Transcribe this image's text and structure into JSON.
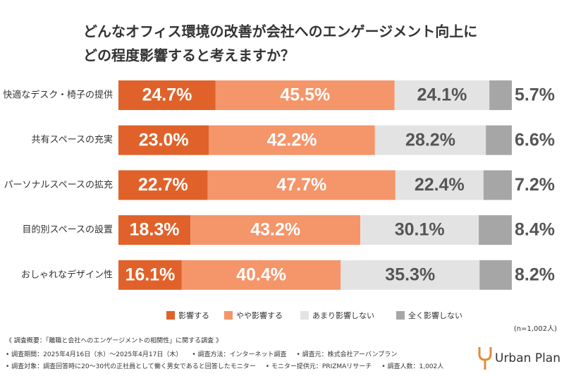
{
  "chart_data": {
    "type": "stacked-bar-100",
    "title_lines": [
      "どんなオフィス環境の改善が会社へのエンゲージメント向上に",
      "どの程度影響すると考えますか？"
    ],
    "categories": [
      "快適なデスク・椅子の提供",
      "共有スペースの充実",
      "パーソナルスペースの拡充",
      "目的別スペースの設置",
      "おしゃれなデザイン性"
    ],
    "series": [
      {
        "name": "影響する",
        "color": "#e0622a",
        "values": [
          24.7,
          23.0,
          22.7,
          18.3,
          16.1
        ],
        "value_labels": [
          "24.7%",
          "23.0%",
          "22.7%",
          "18.3%",
          "16.1%"
        ]
      },
      {
        "name": "やや影響する",
        "color": "#f5956a",
        "values": [
          45.5,
          42.2,
          47.7,
          43.2,
          40.4
        ],
        "value_labels": [
          "45.5%",
          "42.2%",
          "47.7%",
          "43.2%",
          "40.4%"
        ]
      },
      {
        "name": "あまり影響しない",
        "color": "#e3e3e3",
        "values": [
          24.1,
          28.2,
          22.4,
          30.1,
          35.3
        ],
        "value_labels": [
          "24.1%",
          "28.2%",
          "22.4%",
          "30.1%",
          "35.3%"
        ]
      },
      {
        "name": "全く影響しない",
        "color": "#a6a6a6",
        "values": [
          5.7,
          6.6,
          7.2,
          8.4,
          8.2
        ],
        "value_labels": [
          "5.7%",
          "6.6%",
          "7.2%",
          "8.4%",
          "8.2%"
        ]
      }
    ],
    "sample_note": "(n=1,002人)"
  },
  "notes": {
    "heading": "《 調査概要：「離職と会社へのエンゲージメントの相関性」に関する調査 》",
    "lines": [
      [
        "• 調査期間：2025年4月16日（水）～2025年4月17日（木）",
        "• 調査方法：インターネット調査",
        "• 調査元：株式会社アーバンプラン"
      ],
      [
        "• 調査対象：調査回答時に20～30代の正社員として働く男女であると回答したモニター",
        "• モニター提供元：PRIZMAリサーチ",
        "• 調査人数：1,002人"
      ]
    ]
  },
  "logo": "Urban Plan"
}
